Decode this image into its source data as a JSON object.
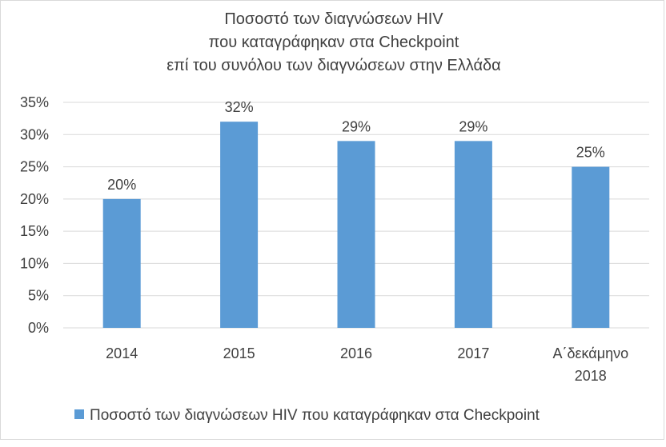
{
  "chart_data": {
    "type": "bar",
    "title": [
      "Ποσοστό των διαγνώσεων HIV",
      "που καταγράφηκαν στα Checkpoint",
      "επί του συνόλου των διαγνώσεων στην Ελλάδα"
    ],
    "categories": [
      [
        "2014"
      ],
      [
        "2015"
      ],
      [
        "2016"
      ],
      [
        "2017"
      ],
      [
        "Α΄δεκάμηνο",
        "2018"
      ]
    ],
    "series": [
      {
        "name": "Ποσοστό των διαγνώσεων HIV που καταγράφηκαν στα Checkpoint",
        "values": [
          20,
          32,
          29,
          29,
          25
        ],
        "labels": [
          "20%",
          "32%",
          "29%",
          "29%",
          "25%"
        ],
        "color": "#5b9bd5"
      }
    ],
    "ylim": [
      0,
      35
    ],
    "yticks": [
      "0%",
      "5%",
      "10%",
      "15%",
      "20%",
      "25%",
      "30%",
      "35%"
    ],
    "grid": true,
    "legend_position": "bottom",
    "xlabel": "",
    "ylabel": ""
  }
}
